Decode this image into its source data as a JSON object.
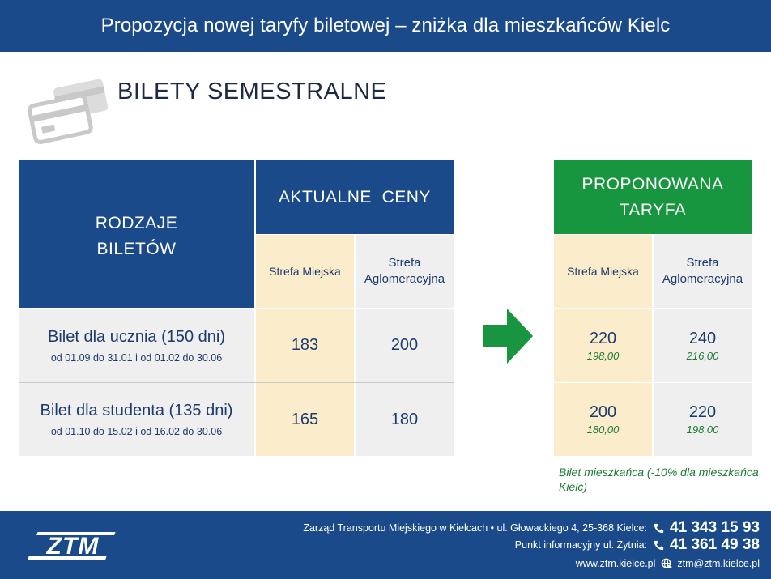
{
  "header": {
    "title": "Propozycja nowej taryfy biletowej – zniżka dla mieszkańców Kielc"
  },
  "section": {
    "title": "BILETY SEMESTRALNE",
    "icon": "cards-icon"
  },
  "table": {
    "types_header": [
      "RODZAJE",
      "BILETÓW"
    ],
    "current_header": "AKTUALNE  CENY",
    "proposed_header": [
      "PROPONOWANA",
      "TARYFA"
    ],
    "zone_city": "Strefa Miejska",
    "zone_agglo": [
      "Strefa",
      "Aglomeracyjna"
    ],
    "rows": [
      {
        "title": "Bilet dla ucznia (150 dni)",
        "subtitle": "od 01.09 do 31.01 i od 01.02 do 30.06",
        "current_city": "183",
        "current_agglo": "200",
        "proposed_city": "220",
        "proposed_city_resident": "198,00",
        "proposed_agglo": "240",
        "proposed_agglo_resident": "216,00"
      },
      {
        "title": "Bilet dla studenta (135 dni)",
        "subtitle": "od 01.10 do 15.02 i od 16.02 do 30.06",
        "current_city": "165",
        "current_agglo": "180",
        "proposed_city": "200",
        "proposed_city_resident": "180,00",
        "proposed_agglo": "220",
        "proposed_agglo_resident": "198,00"
      }
    ],
    "arrow_icon": "arrow-right-icon"
  },
  "note": "Bilet mieszkańca (-10% dla mieszkańca Kielc)",
  "footer": {
    "logo_text": "ZTM",
    "line1_text": "Zarząd Transportu Miejskiego w Kielcach  • ul. Głowackiego 4, 25-368 Kielce:",
    "phone1": "41 343 15 93",
    "line2_text": "Punkt informacyjny ul. Żytnia:",
    "phone2": "41 361 49 38",
    "website": "www.ztm.kielce.pl",
    "email": "ztm@ztm.kielce.pl"
  },
  "colors": {
    "brand_blue": "#1a4a8a",
    "green": "#17953f",
    "cream": "#fbeccb",
    "grey": "#efefef"
  }
}
